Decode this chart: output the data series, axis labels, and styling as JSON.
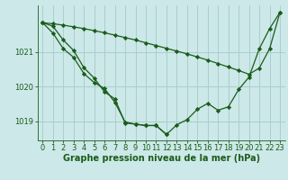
{
  "background_color": "#cce8e8",
  "line_color": "#1a5c1a",
  "grid_color": "#aacece",
  "xlabel": "Graphe pression niveau de la mer (hPa)",
  "xlabel_fontsize": 7,
  "tick_fontsize": 6,
  "ylim": [
    1018.45,
    1022.35
  ],
  "xlim": [
    -0.5,
    23.5
  ],
  "yticks": [
    1019,
    1020,
    1021
  ],
  "xticks": [
    0,
    1,
    2,
    3,
    4,
    5,
    6,
    7,
    8,
    9,
    10,
    11,
    12,
    13,
    14,
    15,
    16,
    17,
    18,
    19,
    20,
    21,
    22,
    23
  ],
  "series": [
    {
      "x": [
        0,
        1,
        2,
        3,
        4,
        5,
        6,
        7,
        8,
        9,
        10,
        11,
        12,
        13,
        14,
        15,
        16,
        17,
        18,
        19,
        20,
        21,
        22,
        23
      ],
      "y": [
        1021.85,
        1021.75,
        1021.35,
        1021.05,
        1020.55,
        1020.25,
        1019.85,
        1019.65,
        1018.95,
        1018.92,
        1018.88,
        1018.88,
        1018.62,
        1018.9,
        1019.05,
        1019.35,
        1019.52,
        1019.32,
        1019.42,
        1019.92,
        1020.28,
        1021.1,
        1021.68,
        1022.15
      ],
      "marker": "D",
      "markersize": 2.2
    },
    {
      "x": [
        0,
        1,
        2,
        3,
        4,
        5,
        6,
        7,
        8,
        9,
        10,
        11,
        12,
        13,
        14,
        15,
        16,
        17,
        18,
        19,
        20,
        21,
        22,
        23
      ],
      "y": [
        1021.85,
        1021.82,
        1021.78,
        1021.73,
        1021.68,
        1021.62,
        1021.56,
        1021.49,
        1021.42,
        1021.35,
        1021.27,
        1021.19,
        1021.11,
        1021.03,
        1020.95,
        1020.86,
        1020.77,
        1020.67,
        1020.57,
        1020.47,
        1020.36,
        1020.54,
        1021.1,
        1022.15
      ],
      "marker": "D",
      "markersize": 2.2
    },
    {
      "x": [
        0,
        1,
        2,
        3,
        4,
        5,
        6,
        7,
        8,
        9,
        10,
        11,
        12
      ],
      "y": [
        1021.85,
        1021.55,
        1021.1,
        1020.85,
        1020.38,
        1020.12,
        1019.95,
        1019.55,
        1018.98,
        1018.92,
        1018.88,
        1018.88,
        1018.62
      ],
      "marker": "D",
      "markersize": 2.2
    }
  ]
}
